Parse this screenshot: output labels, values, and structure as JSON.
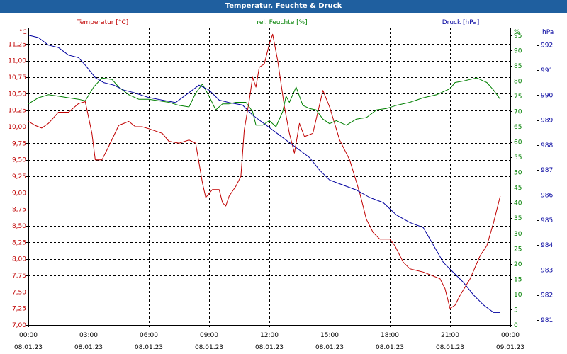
{
  "window": {
    "title": "Temperatur, Feuchte & Druck"
  },
  "colors": {
    "temperature": "#c00000",
    "humidity": "#008000",
    "pressure": "#00009f",
    "title_bar": "#1f5f9f",
    "grid": "#000000",
    "axis_text": "#000000"
  },
  "chart_data": {
    "type": "line",
    "title": "Temperatur, Feuchte & Druck",
    "grid": true,
    "x": {
      "range": [
        "08.01.23 00:00",
        "09.01.23 00:00"
      ],
      "ticks": [
        {
          "time": "00:00",
          "date": "08.01.23"
        },
        {
          "time": "03:00",
          "date": "08.01.23"
        },
        {
          "time": "06:00",
          "date": "08.01.23"
        },
        {
          "time": "09:00",
          "date": "08.01.23"
        },
        {
          "time": "12:00",
          "date": "08.01.23"
        },
        {
          "time": "15:00",
          "date": "08.01.23"
        },
        {
          "time": "18:00",
          "date": "08.01.23"
        },
        {
          "time": "21:00",
          "date": "08.01.23"
        },
        {
          "time": "00:00",
          "date": "09.01.23"
        }
      ]
    },
    "axes": {
      "temperature": {
        "unit": "°C",
        "label": "Temperatur [°C]",
        "range": [
          7.0,
          11.5
        ],
        "ticks": [
          "7,00",
          "7,25",
          "7,50",
          "7,75",
          "8,00",
          "8,25",
          "8,50",
          "8,75",
          "9,00",
          "9,25",
          "9,50",
          "9,75",
          "10,00",
          "10,25",
          "10,50",
          "10,75",
          "11,00",
          "11,25"
        ]
      },
      "humidity": {
        "unit": "%",
        "label": "rel. Feuchte [%]",
        "range": [
          0,
          97.5
        ],
        "ticks": [
          "0",
          "5",
          "10",
          "15",
          "20",
          "25",
          "30",
          "35",
          "40",
          "45",
          "50",
          "55",
          "60",
          "65",
          "70",
          "75",
          "80",
          "85",
          "90",
          "95"
        ]
      },
      "pressure": {
        "unit": "hPa",
        "label": "Druck [hPa]",
        "range": [
          980.8,
          992.7
        ],
        "ticks": [
          "981",
          "982",
          "983",
          "984",
          "985",
          "986",
          "987",
          "988",
          "989",
          "990",
          "991",
          "992"
        ]
      }
    },
    "series": [
      {
        "name": "Temperatur [°C]",
        "axis": "temperature",
        "color": "#c00000",
        "points": [
          [
            "08.01.23 00:00",
            10.08
          ],
          [
            "08.01.23 00:20",
            10.02
          ],
          [
            "08.01.23 00:40",
            9.98
          ],
          [
            "08.01.23 01:00",
            10.05
          ],
          [
            "08.01.23 01:30",
            10.22
          ],
          [
            "08.01.23 02:00",
            10.22
          ],
          [
            "08.01.23 02:30",
            10.35
          ],
          [
            "08.01.23 02:50",
            10.38
          ],
          [
            "08.01.23 03:10",
            9.9
          ],
          [
            "08.01.23 03:20",
            9.5
          ],
          [
            "08.01.23 03:40",
            9.5
          ],
          [
            "08.01.23 04:00",
            9.7
          ],
          [
            "08.01.23 04:30",
            10.02
          ],
          [
            "08.01.23 05:00",
            10.08
          ],
          [
            "08.01.23 05:20",
            10.0
          ],
          [
            "08.01.23 05:40",
            10.0
          ],
          [
            "08.01.23 06:00",
            9.97
          ],
          [
            "08.01.23 06:40",
            9.9
          ],
          [
            "08.01.23 07:00",
            9.78
          ],
          [
            "08.01.23 07:30",
            9.75
          ],
          [
            "08.01.23 08:00",
            9.8
          ],
          [
            "08.01.23 08:20",
            9.75
          ],
          [
            "08.01.23 08:40",
            9.15
          ],
          [
            "08.01.23 08:50",
            8.93
          ],
          [
            "08.01.23 09:10",
            9.05
          ],
          [
            "08.01.23 09:30",
            9.05
          ],
          [
            "08.01.23 09:40",
            8.85
          ],
          [
            "08.01.23 09:50",
            8.8
          ],
          [
            "08.01.23 10:00",
            8.95
          ],
          [
            "08.01.23 10:20",
            9.1
          ],
          [
            "08.01.23 10:35",
            9.25
          ],
          [
            "08.01.23 10:45",
            9.95
          ],
          [
            "08.01.23 11:00",
            10.4
          ],
          [
            "08.01.23 11:10",
            10.75
          ],
          [
            "08.01.23 11:20",
            10.6
          ],
          [
            "08.01.23 11:30",
            10.9
          ],
          [
            "08.01.23 11:45",
            10.95
          ],
          [
            "08.01.23 12:00",
            11.25
          ],
          [
            "08.01.23 12:10",
            11.4
          ],
          [
            "08.01.23 12:25",
            11.0
          ],
          [
            "08.01.23 12:45",
            10.3
          ],
          [
            "08.01.23 13:00",
            9.9
          ],
          [
            "08.01.23 13:15",
            9.6
          ],
          [
            "08.01.23 13:30",
            10.05
          ],
          [
            "08.01.23 13:45",
            9.85
          ],
          [
            "08.01.23 14:10",
            9.9
          ],
          [
            "08.01.23 14:40",
            10.55
          ],
          [
            "08.01.23 15:00",
            10.3
          ],
          [
            "08.01.23 15:30",
            9.8
          ],
          [
            "08.01.23 16:00",
            9.5
          ],
          [
            "08.01.23 16:30",
            9.0
          ],
          [
            "08.01.23 16:50",
            8.6
          ],
          [
            "08.01.23 17:10",
            8.4
          ],
          [
            "08.01.23 17:30",
            8.3
          ],
          [
            "08.01.23 18:00",
            8.3
          ],
          [
            "08.01.23 18:15",
            8.2
          ],
          [
            "08.01.23 18:40",
            7.95
          ],
          [
            "08.01.23 19:00",
            7.85
          ],
          [
            "08.01.23 19:40",
            7.8
          ],
          [
            "08.01.23 20:30",
            7.7
          ],
          [
            "08.01.23 20:45",
            7.55
          ],
          [
            "08.01.23 21:00",
            7.25
          ],
          [
            "08.01.23 21:15",
            7.3
          ],
          [
            "08.01.23 21:30",
            7.45
          ],
          [
            "08.01.23 22:00",
            7.7
          ],
          [
            "08.01.23 22:30",
            8.05
          ],
          [
            "08.01.23 22:50",
            8.2
          ],
          [
            "08.01.23 23:10",
            8.55
          ],
          [
            "08.01.23 23:30",
            8.95
          ]
        ]
      },
      {
        "name": "rel. Feuchte [%]",
        "axis": "humidity",
        "color": "#008000",
        "points": [
          [
            "08.01.23 00:00",
            72.5
          ],
          [
            "08.01.23 00:30",
            74.5
          ],
          [
            "08.01.23 01:00",
            75.5
          ],
          [
            "08.01.23 01:30",
            75.0
          ],
          [
            "08.01.23 02:00",
            74.5
          ],
          [
            "08.01.23 02:30",
            74.0
          ],
          [
            "08.01.23 02:50",
            73.5
          ],
          [
            "08.01.23 03:15",
            78.0
          ],
          [
            "08.01.23 03:40",
            81.0
          ],
          [
            "08.01.23 04:10",
            80.5
          ],
          [
            "08.01.23 04:30",
            78.0
          ],
          [
            "08.01.23 05:00",
            75.5
          ],
          [
            "08.01.23 05:30",
            74.0
          ],
          [
            "08.01.23 06:00",
            74.0
          ],
          [
            "08.01.23 06:30",
            73.5
          ],
          [
            "08.01.23 07:00",
            73.0
          ],
          [
            "08.01.23 07:30",
            72.0
          ],
          [
            "08.01.23 08:00",
            71.5
          ],
          [
            "08.01.23 08:20",
            76.0
          ],
          [
            "08.01.23 08:40",
            79.0
          ],
          [
            "08.01.23 09:00",
            75.0
          ],
          [
            "08.01.23 09:20",
            70.5
          ],
          [
            "08.01.23 09:40",
            72.5
          ],
          [
            "08.01.23 10:00",
            72.5
          ],
          [
            "08.01.23 10:20",
            73.0
          ],
          [
            "08.01.23 10:50",
            73.0
          ],
          [
            "08.01.23 11:10",
            70.0
          ],
          [
            "08.01.23 11:20",
            65.5
          ],
          [
            "08.01.23 11:40",
            65.5
          ],
          [
            "08.01.23 12:00",
            67.0
          ],
          [
            "08.01.23 12:20",
            65.0
          ],
          [
            "08.01.23 12:40",
            70.0
          ],
          [
            "08.01.23 12:50",
            75.0
          ],
          [
            "08.01.23 13:00",
            73.0
          ],
          [
            "08.01.23 13:20",
            78.0
          ],
          [
            "08.01.23 13:40",
            72.0
          ],
          [
            "08.01.23 14:00",
            71.0
          ],
          [
            "08.01.23 14:20",
            70.5
          ],
          [
            "08.01.23 14:40",
            67.5
          ],
          [
            "08.01.23 15:00",
            66.0
          ],
          [
            "08.01.23 15:20",
            67.0
          ],
          [
            "08.01.23 15:50",
            65.5
          ],
          [
            "08.01.23 16:20",
            67.5
          ],
          [
            "08.01.23 16:50",
            68.0
          ],
          [
            "08.01.23 17:20",
            70.5
          ],
          [
            "08.01.23 17:50",
            71.0
          ],
          [
            "08.01.23 18:20",
            72.0
          ],
          [
            "08.01.23 19:00",
            73.0
          ],
          [
            "08.01.23 19:40",
            74.5
          ],
          [
            "08.01.23 20:20",
            75.5
          ],
          [
            "08.01.23 21:00",
            77.5
          ],
          [
            "08.01.23 21:15",
            79.5
          ],
          [
            "08.01.23 21:40",
            80.0
          ],
          [
            "08.01.23 22:00",
            80.5
          ],
          [
            "08.01.23 22:20",
            81.0
          ],
          [
            "08.01.23 22:40",
            80.0
          ],
          [
            "08.01.23 22:50",
            79.5
          ],
          [
            "08.01.23 23:10",
            77.0
          ],
          [
            "08.01.23 23:30",
            74.0
          ]
        ]
      },
      {
        "name": "Druck [hPa]",
        "axis": "pressure",
        "color": "#00009f",
        "points": [
          [
            "08.01.23 00:00",
            992.4
          ],
          [
            "08.01.23 00:30",
            992.3
          ],
          [
            "08.01.23 01:00",
            992.0
          ],
          [
            "08.01.23 01:30",
            991.9
          ],
          [
            "08.01.23 02:00",
            991.6
          ],
          [
            "08.01.23 02:30",
            991.5
          ],
          [
            "08.01.23 02:50",
            991.2
          ],
          [
            "08.01.23 03:20",
            990.7
          ],
          [
            "08.01.23 03:45",
            990.5
          ],
          [
            "08.01.23 04:15",
            990.4
          ],
          [
            "08.01.23 04:45",
            990.2
          ],
          [
            "08.01.23 05:15",
            990.1
          ],
          [
            "08.01.23 06:00",
            989.9
          ],
          [
            "08.01.23 06:40",
            989.8
          ],
          [
            "08.01.23 07:20",
            989.7
          ],
          [
            "08.01.23 08:00",
            990.1
          ],
          [
            "08.01.23 08:30",
            990.4
          ],
          [
            "08.01.23 09:00",
            990.2
          ],
          [
            "08.01.23 09:30",
            989.8
          ],
          [
            "08.01.23 10:00",
            989.7
          ],
          [
            "08.01.23 10:40",
            989.6
          ],
          [
            "08.01.23 11:10",
            989.2
          ],
          [
            "08.01.23 11:40",
            988.9
          ],
          [
            "08.01.23 12:20",
            988.5
          ],
          [
            "08.01.23 12:50",
            988.2
          ],
          [
            "08.01.23 13:20",
            987.9
          ],
          [
            "08.01.23 14:00",
            987.5
          ],
          [
            "08.01.23 14:30",
            987.0
          ],
          [
            "08.01.23 15:00",
            986.6
          ],
          [
            "08.01.23 15:40",
            986.4
          ],
          [
            "08.01.23 16:20",
            986.2
          ],
          [
            "08.01.23 17:00",
            985.9
          ],
          [
            "08.01.23 17:40",
            985.7
          ],
          [
            "08.01.23 18:20",
            985.2
          ],
          [
            "08.01.23 19:00",
            984.9
          ],
          [
            "08.01.23 19:40",
            984.7
          ],
          [
            "08.01.23 20:10",
            984.0
          ],
          [
            "08.01.23 20:40",
            983.3
          ],
          [
            "08.01.23 21:10",
            982.9
          ],
          [
            "08.01.23 21:40",
            982.5
          ],
          [
            "08.01.23 22:10",
            982.0
          ],
          [
            "08.01.23 22:40",
            981.6
          ],
          [
            "08.01.23 23:10",
            981.3
          ],
          [
            "08.01.23 23:30",
            981.3
          ]
        ]
      }
    ]
  }
}
